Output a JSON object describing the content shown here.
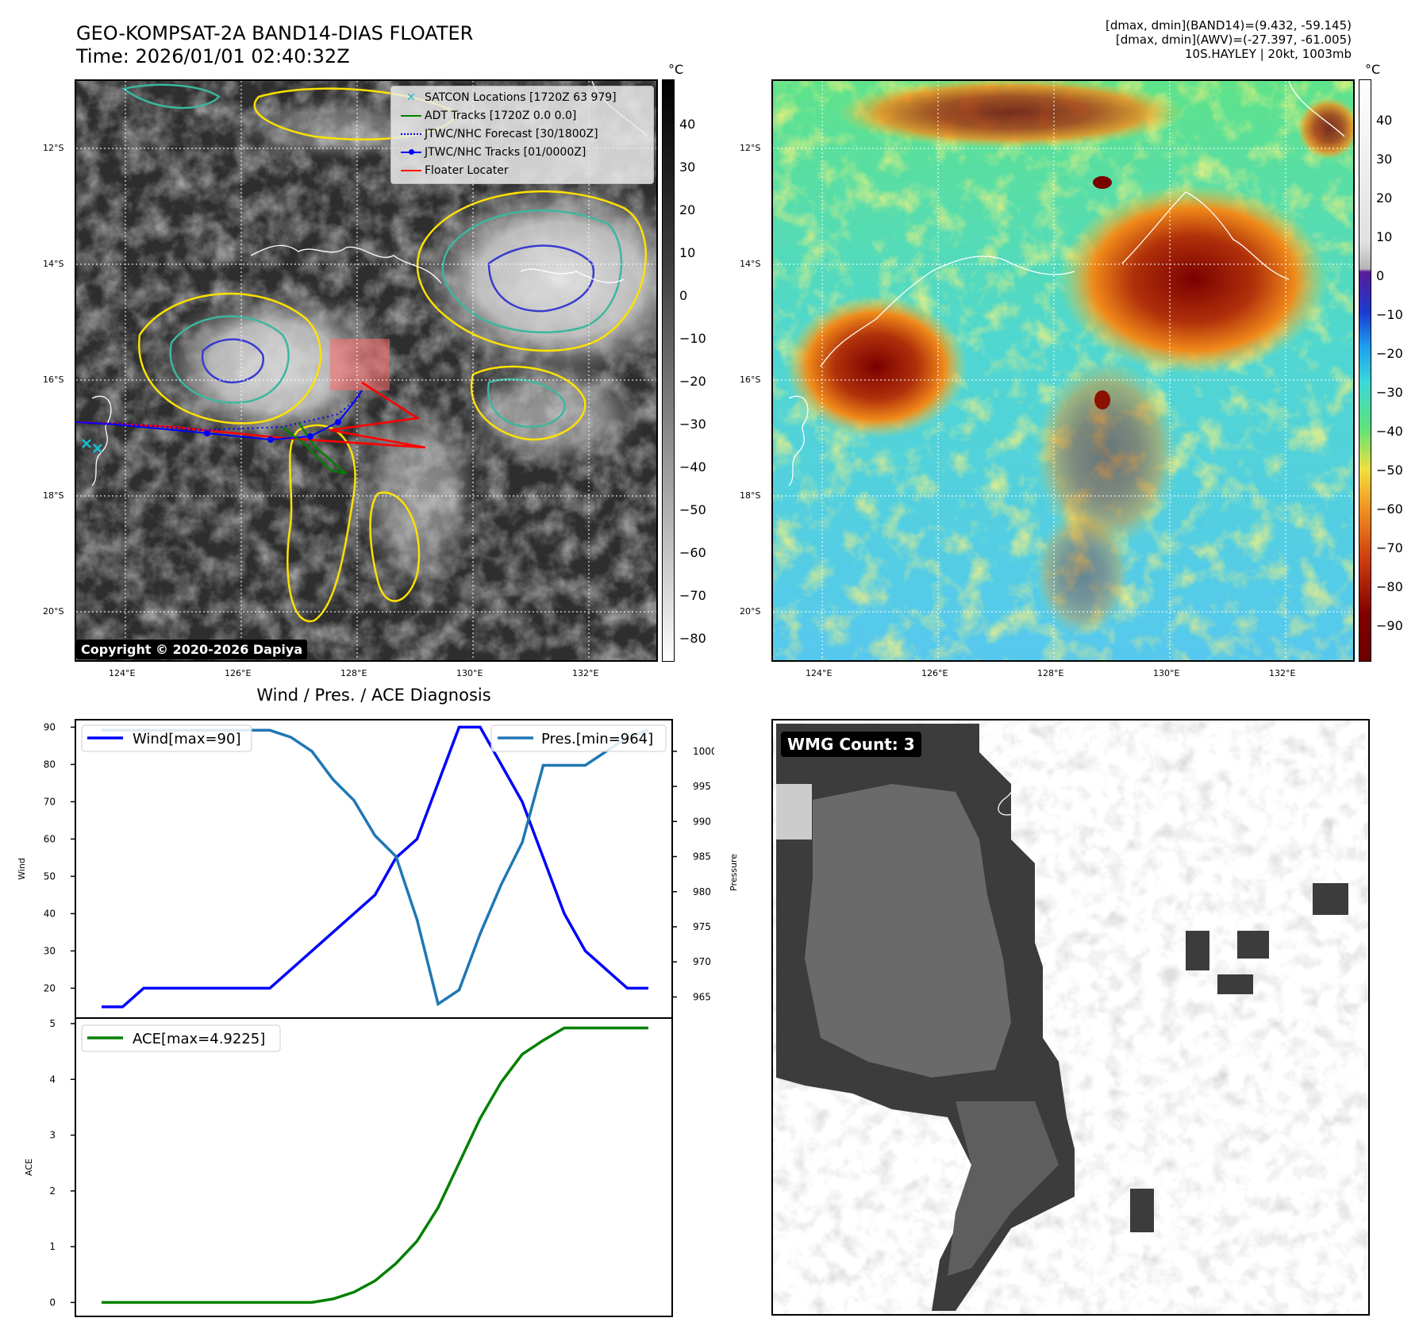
{
  "panel_a": {
    "title_line1": "GEO-KOMPSAT-2A BAND14-DIAS FLOATER",
    "title_line2": "Time: 2026/01/01 02:40:32Z",
    "unit": "°C",
    "lat_labels": [
      "12°S",
      "14°S",
      "16°S",
      "18°S",
      "20°S"
    ],
    "lon_labels": [
      "124°E",
      "126°E",
      "128°E",
      "130°E",
      "132°E"
    ],
    "colorbar_ticks": [
      "40",
      "30",
      "20",
      "10",
      "0",
      "−10",
      "−20",
      "−30",
      "−40",
      "−50",
      "−60",
      "−70",
      "−80"
    ],
    "copyright": "Copyright © 2020-2026 Dapiya",
    "legend": [
      {
        "label": "SATCON Locations [1720Z 63 979]",
        "color": "#17becf",
        "marker": "x"
      },
      {
        "label": "ADT Tracks [1720Z 0.0 0.0]",
        "color": "#008000",
        "marker": "line"
      },
      {
        "label": "JTWC/NHC Forecast [30/1800Z]",
        "color": "#0000ff",
        "marker": "dotted"
      },
      {
        "label": "JTWC/NHC Tracks [01/0000Z]",
        "color": "#0000ff",
        "marker": "line-dot"
      },
      {
        "label": "Floater Locater",
        "color": "#ff0000",
        "marker": "line"
      }
    ]
  },
  "panel_b": {
    "stat_line1": "[dmax, dmin](BAND14)=(9.432, -59.145)",
    "stat_line2": "[dmax, dmin](AWV)=(-27.397, -61.005)",
    "stat_line3": "10S.HAYLEY | 20kt, 1003mb",
    "unit": "°C",
    "lat_labels": [
      "12°S",
      "14°S",
      "16°S",
      "18°S",
      "20°S"
    ],
    "lon_labels": [
      "124°E",
      "126°E",
      "128°E",
      "130°E",
      "132°E"
    ],
    "colorbar_ticks": [
      "40",
      "30",
      "20",
      "10",
      "0",
      "−10",
      "−20",
      "−30",
      "−40",
      "−50",
      "−60",
      "−70",
      "−80",
      "−90"
    ]
  },
  "panel_c": {
    "title": "Wind / Pres. / ACE Diagnosis",
    "wind_ylabel": "Wind",
    "pres_ylabel": "Pressure",
    "ace_ylabel": "ACE",
    "wind_legend": "Wind[max=90]",
    "pres_legend": "Pres.[min=964]",
    "ace_legend": "ACE[max=4.9225]",
    "colors": {
      "wind": "#0000ff",
      "pres": "#1f77b4",
      "ace": "#008000"
    }
  },
  "panel_d": {
    "badge": "WMG Count: 3"
  },
  "chart_data": [
    {
      "type": "line",
      "title": "Wind / Pres. / ACE Diagnosis",
      "ylabel": "Wind",
      "ylim": [
        12,
        92
      ],
      "yticks": [
        20,
        30,
        40,
        50,
        60,
        70,
        80,
        90
      ],
      "x": [
        0,
        1,
        2,
        3,
        4,
        5,
        6,
        7,
        8,
        9,
        10,
        11,
        12,
        13,
        14,
        15,
        16,
        17,
        18,
        19,
        20,
        21,
        22,
        23,
        24,
        25,
        26
      ],
      "series": [
        {
          "name": "Wind[max=90]",
          "values": [
            15,
            15,
            20,
            20,
            20,
            20,
            20,
            20,
            20,
            25,
            30,
            35,
            40,
            45,
            55,
            60,
            75,
            90,
            90,
            80,
            70,
            55,
            40,
            30,
            25,
            20,
            20
          ]
        }
      ]
    },
    {
      "type": "line",
      "ylabel": "Pressure",
      "ylim": [
        962,
        1004.5
      ],
      "yticks": [
        965,
        970,
        975,
        980,
        985,
        990,
        995,
        1000
      ],
      "x": [
        0,
        1,
        2,
        3,
        4,
        5,
        6,
        7,
        8,
        9,
        10,
        11,
        12,
        13,
        14,
        15,
        16,
        17,
        18,
        19,
        20,
        21,
        22,
        23,
        24,
        25,
        26
      ],
      "series": [
        {
          "name": "Pres.[min=964]",
          "values": [
            1003,
            1003,
            1003,
            1003,
            1003,
            1003,
            1003,
            1003,
            1003,
            1002,
            1000,
            996,
            993,
            988,
            985,
            976,
            964,
            966,
            974,
            981,
            987,
            998,
            998,
            998,
            1000,
            1002,
            1003
          ]
        }
      ]
    },
    {
      "type": "line",
      "ylabel": "ACE",
      "ylim": [
        -0.25,
        5.1
      ],
      "yticks": [
        0,
        1,
        2,
        3,
        4,
        5
      ],
      "x": [
        0,
        1,
        2,
        3,
        4,
        5,
        6,
        7,
        8,
        9,
        10,
        11,
        12,
        13,
        14,
        15,
        16,
        17,
        18,
        19,
        20,
        21,
        22,
        23,
        24,
        25,
        26
      ],
      "series": [
        {
          "name": "ACE[max=4.9225]",
          "values": [
            0,
            0,
            0,
            0,
            0,
            0,
            0,
            0,
            0,
            0,
            0,
            0.0625,
            0.185,
            0.3875,
            0.7,
            1.1,
            1.7,
            2.5,
            3.3,
            3.95,
            4.45,
            4.7,
            4.9225,
            4.9225,
            4.9225,
            4.9225,
            4.9225
          ]
        }
      ]
    }
  ]
}
